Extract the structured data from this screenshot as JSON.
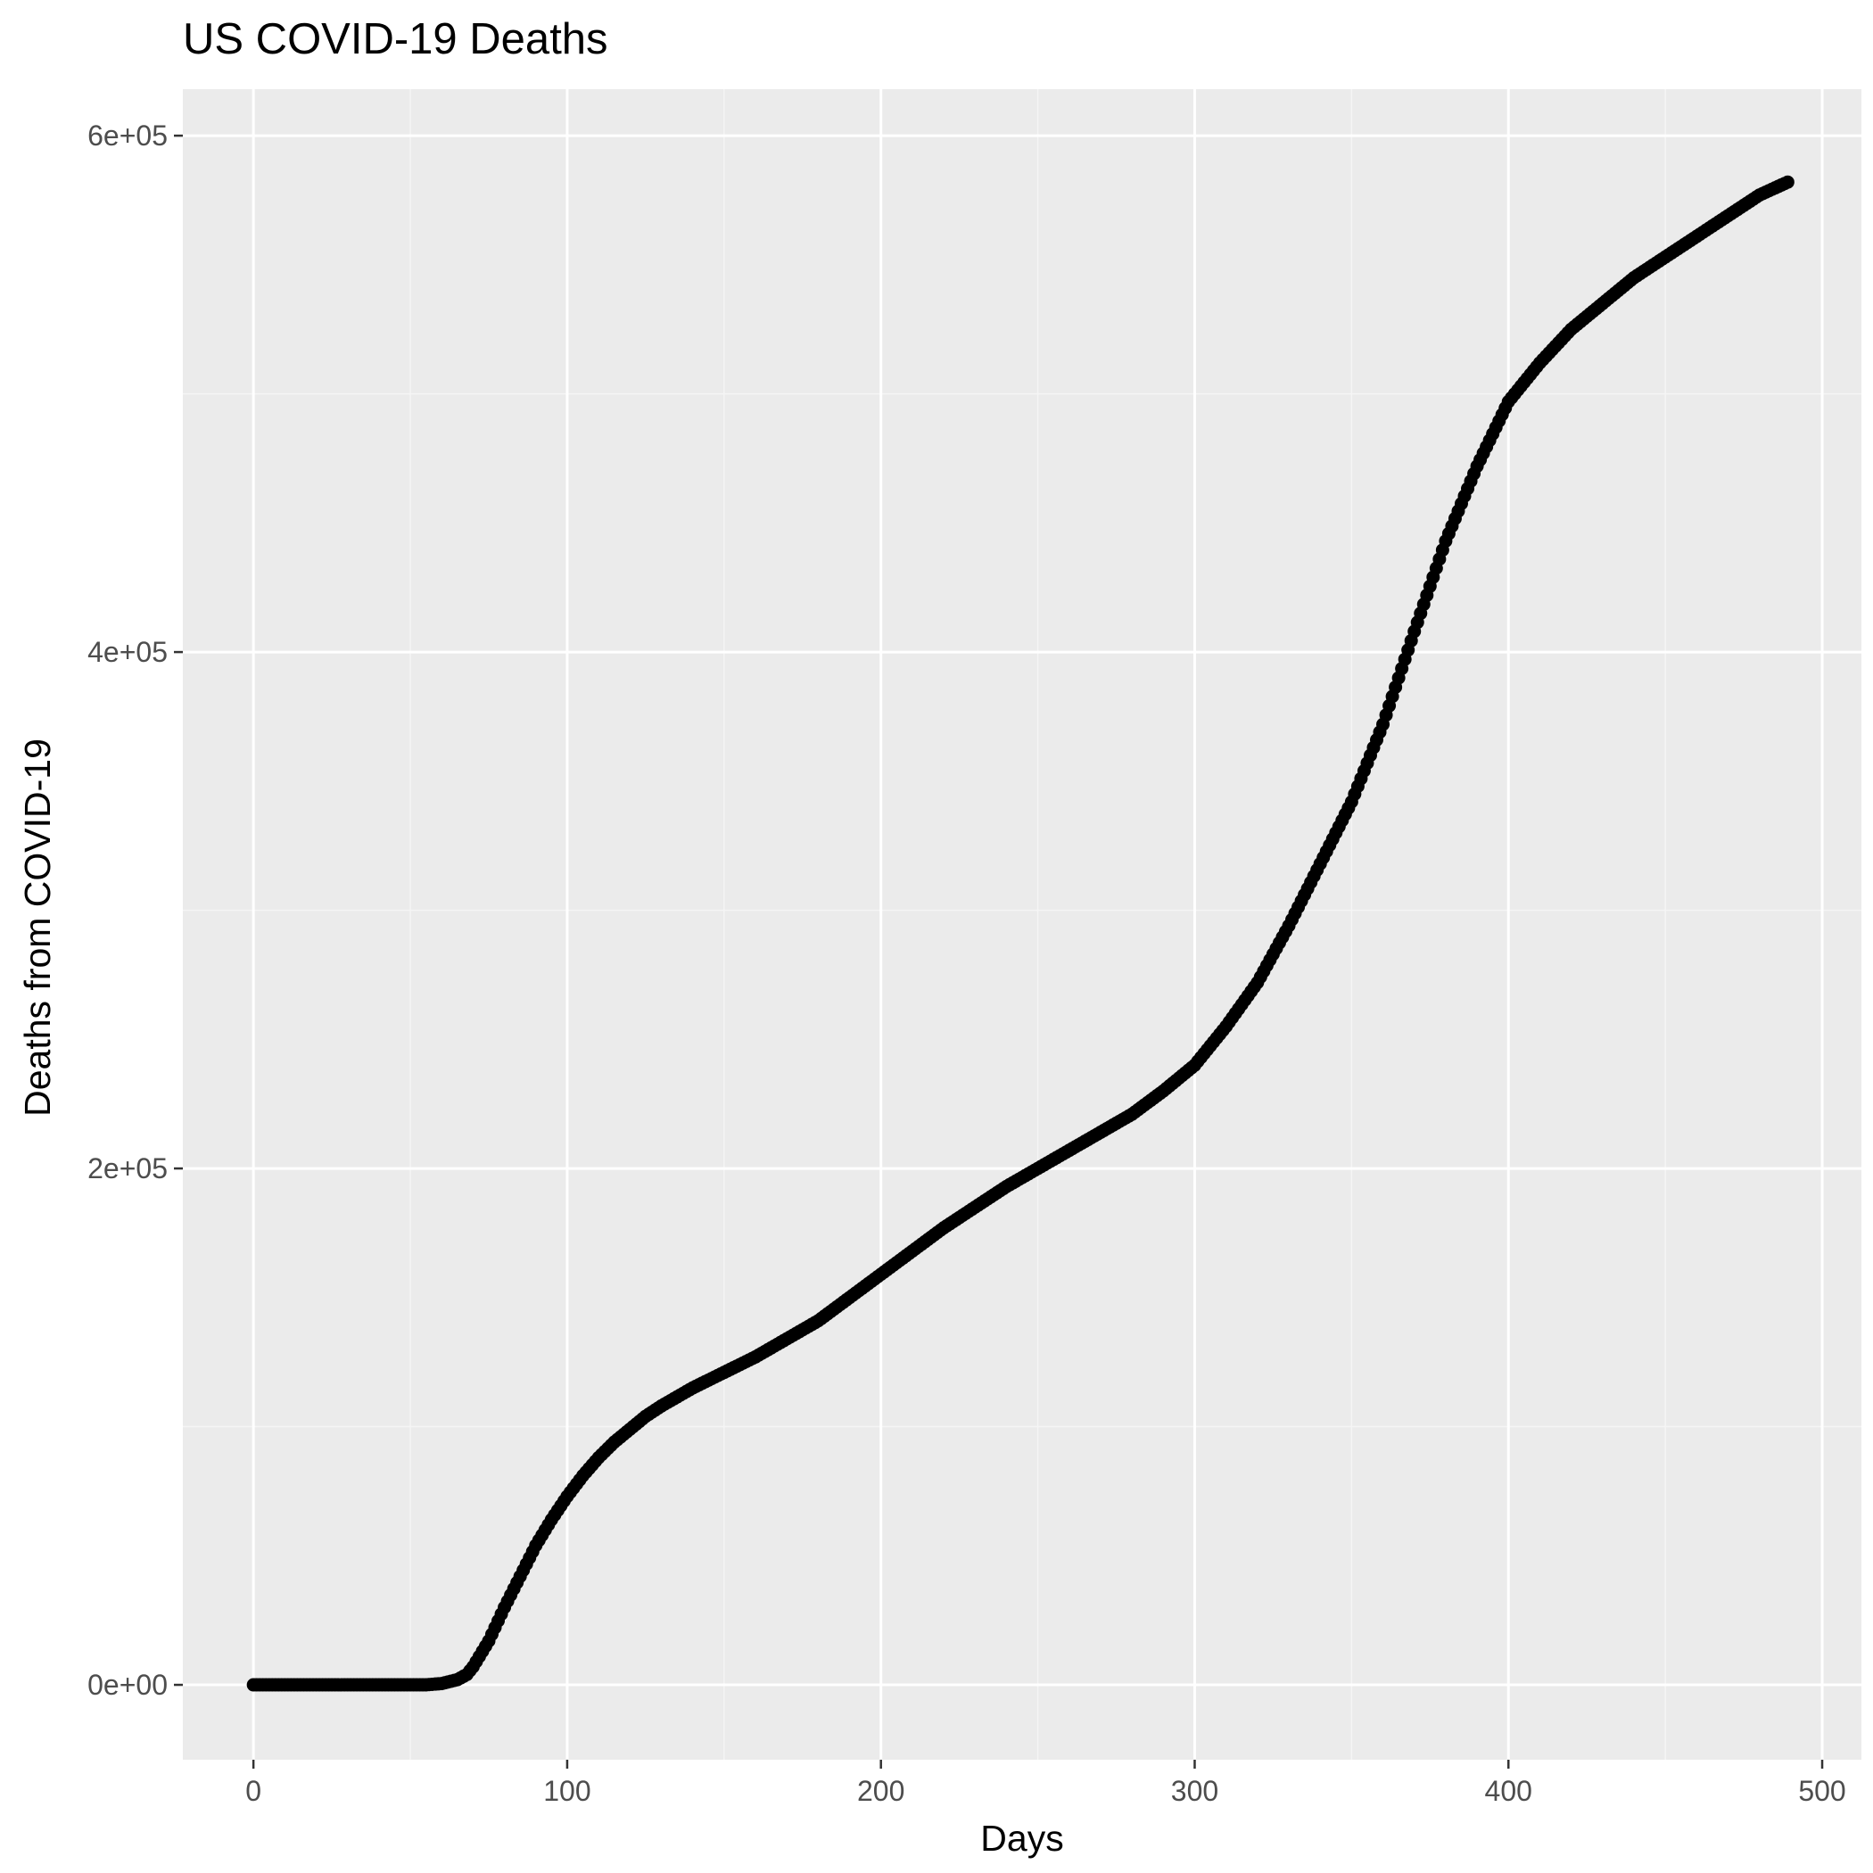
{
  "chart_data": {
    "type": "scatter",
    "title": "US COVID-19 Deaths",
    "xlabel": "Days",
    "ylabel": "Deaths from COVID-19",
    "xlim": [
      -22.5,
      512.5
    ],
    "ylim": [
      -29000,
      618000
    ],
    "x_ticks": [
      0,
      100,
      200,
      300,
      400,
      500
    ],
    "x_tick_labels": [
      "0",
      "100",
      "200",
      "300",
      "400",
      "500"
    ],
    "y_ticks": [
      0,
      200000,
      400000,
      600000
    ],
    "y_tick_labels": [
      "0e+00",
      "2e+05",
      "4e+05",
      "6e+05"
    ],
    "grid": true,
    "legend": "none",
    "colors": {
      "panel_background": "#ebebeb",
      "grid_major": "#ffffff",
      "grid_minor": "#f5f5f5",
      "points": "#000000"
    },
    "series": [
      {
        "x": [
          0,
          55,
          60,
          65,
          68,
          70,
          72,
          75,
          80,
          85,
          90,
          95,
          100,
          105,
          110,
          115,
          120,
          125,
          130,
          140,
          150,
          160,
          170,
          180,
          190,
          200,
          210,
          220,
          230,
          240,
          250,
          260,
          270,
          280,
          290,
          300,
          310,
          320,
          330,
          340,
          350,
          360,
          370,
          380,
          390,
          400,
          410,
          420,
          430,
          440,
          450,
          460,
          470,
          480,
          489
        ],
        "y": [
          0,
          0,
          500,
          2000,
          4000,
          7000,
          11000,
          17000,
          30000,
          42000,
          54000,
          64000,
          73000,
          81000,
          88000,
          94000,
          99000,
          104000,
          108000,
          115000,
          121000,
          127000,
          134000,
          141000,
          150000,
          159000,
          168000,
          177000,
          185000,
          193000,
          200000,
          207000,
          214000,
          221000,
          230000,
          240000,
          255000,
          272000,
          294000,
          318000,
          342000,
          372000,
          408000,
          443000,
          472000,
          497000,
          512000,
          525000,
          535000,
          545000,
          553000,
          561000,
          569000,
          577000,
          582000
        ]
      }
    ]
  }
}
